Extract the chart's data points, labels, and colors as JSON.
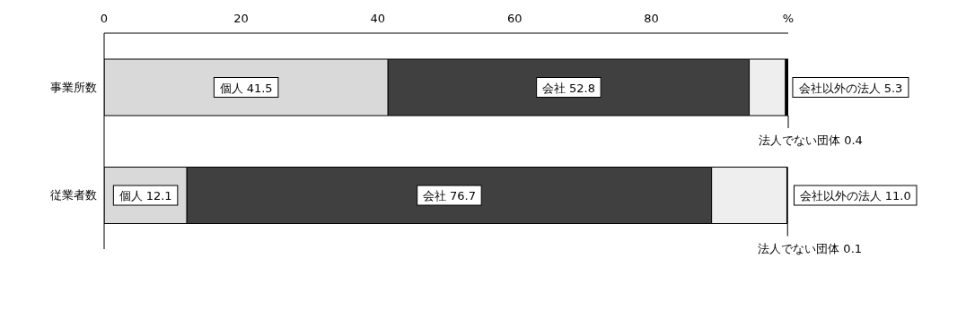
{
  "chart_data": {
    "type": "bar",
    "orientation": "horizontal",
    "stacked": true,
    "categories": [
      "事業所数",
      "従業者数"
    ],
    "series": [
      {
        "name": "個人",
        "color": "#d9d9d9",
        "values": [
          41.5,
          12.1
        ],
        "value_labels": [
          "41.5",
          "12.1"
        ]
      },
      {
        "name": "会社",
        "color": "#404040",
        "values": [
          52.8,
          76.7
        ],
        "value_labels": [
          "52.8",
          "76.7"
        ]
      },
      {
        "name": "会社以外の法人",
        "color": "#eeeeee",
        "values": [
          5.3,
          11.0
        ],
        "value_labels": [
          "5.3",
          "11.0"
        ]
      },
      {
        "name": "法人でない団体",
        "color": "#000000",
        "values": [
          0.4,
          0.1
        ],
        "value_labels": [
          "0.4",
          "0.1"
        ]
      }
    ],
    "xlim": [
      0,
      100
    ],
    "xticks": [
      0,
      20,
      40,
      60,
      80,
      {
        "value": 100,
        "label": "%"
      }
    ],
    "grid": false,
    "legend": false
  }
}
